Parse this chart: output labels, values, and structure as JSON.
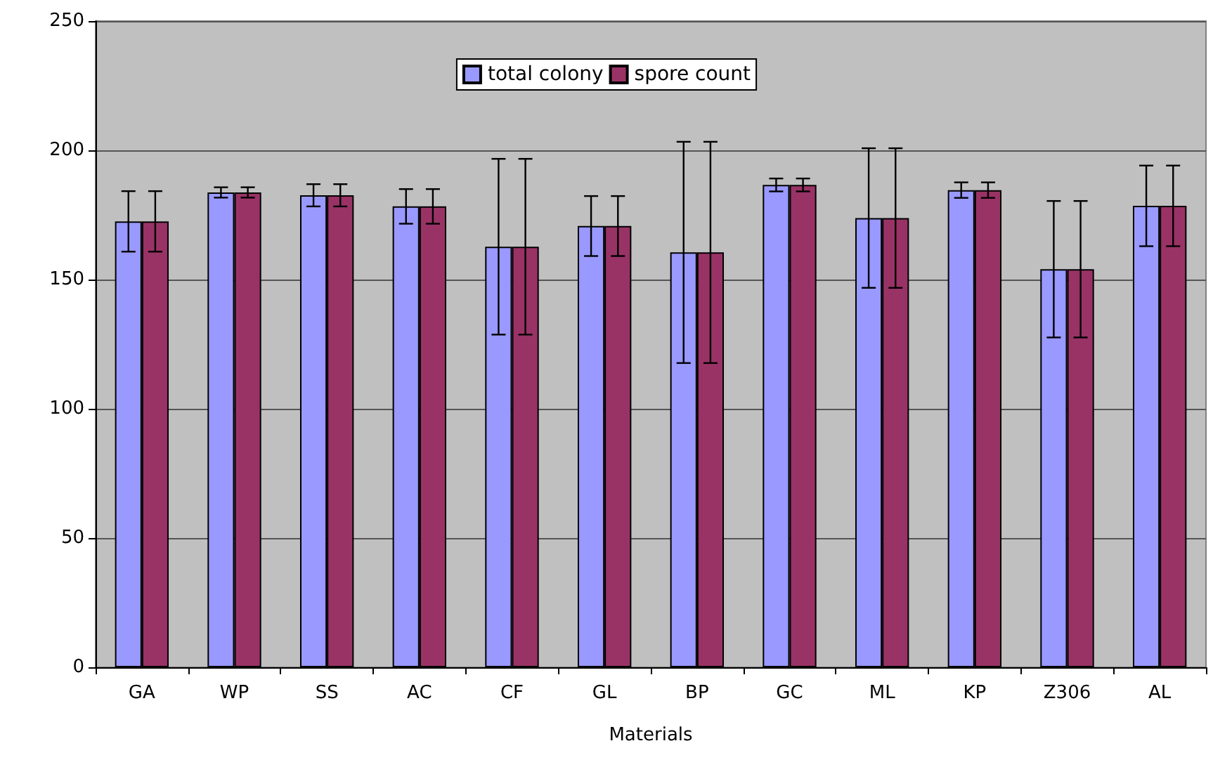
{
  "chart_data": {
    "type": "bar",
    "xlabel": "Materials",
    "categories": [
      "GA",
      "WP",
      "SS",
      "AC",
      "CF",
      "GL",
      "BP",
      "GC",
      "ML",
      "KP",
      "Z306",
      "AL"
    ],
    "series": [
      {
        "name": "total colony",
        "color": "#9999ff",
        "values": [
          172.5,
          183.7,
          182.6,
          178.3,
          162.7,
          170.7,
          160.5,
          186.6,
          173.8,
          184.6,
          154,
          178.5
        ],
        "errors": [
          11.7,
          2,
          4.3,
          6.7,
          34,
          11.6,
          42.8,
          2.5,
          27,
          3,
          26.4,
          15.6
        ]
      },
      {
        "name": "spore count",
        "color": "#993366",
        "values": [
          172.5,
          183.7,
          182.6,
          178.3,
          162.7,
          170.7,
          160.5,
          186.6,
          173.8,
          184.6,
          154,
          178.5
        ],
        "errors": [
          11.7,
          2,
          4.3,
          6.7,
          34,
          11.6,
          42.8,
          2.5,
          27,
          3,
          26.4,
          15.6
        ]
      }
    ],
    "ylim": [
      0,
      250
    ],
    "yticks": [
      0,
      50,
      100,
      150,
      200,
      250
    ],
    "grid": "y",
    "legend": "top"
  }
}
